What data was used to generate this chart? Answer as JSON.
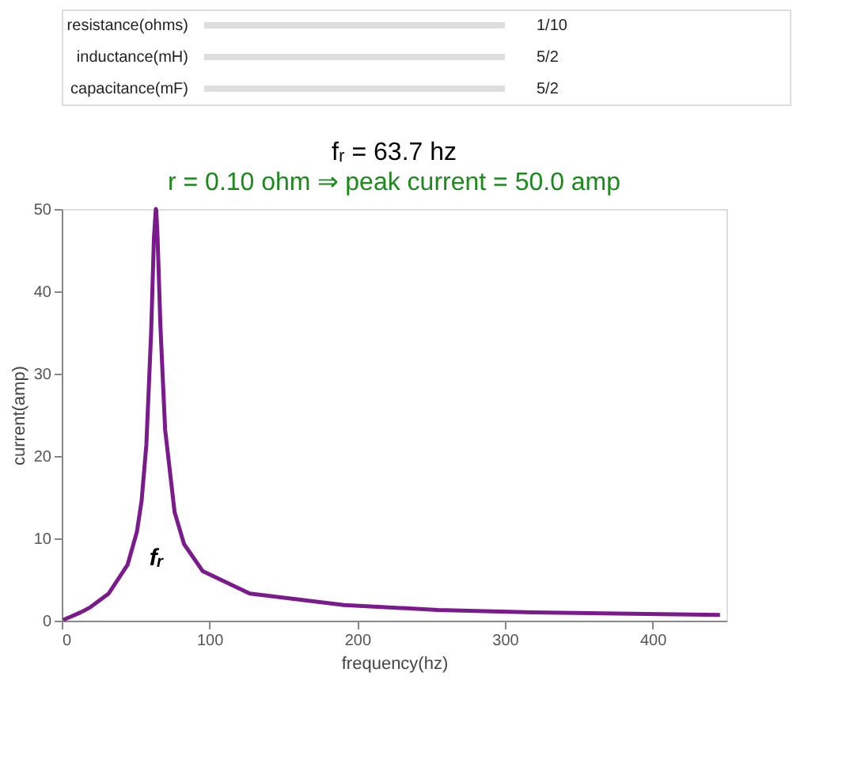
{
  "chart_data": {
    "type": "line",
    "title": "fᵣ = 63.7 hz",
    "subtitle": "r = 0.10 ohm ⇒ peak current = 50.0 amp",
    "xlabel": "frequency(hz)",
    "ylabel": "current(amp)",
    "x": [
      1.0,
      6.4,
      12.7,
      19.1,
      31.8,
      44.6,
      50.9,
      54.1,
      57.3,
      60.5,
      62.4,
      63.7,
      64.0,
      64.9,
      66.8,
      70.0,
      76.4,
      82.8,
      95.5,
      127.3,
      191.0,
      254.6,
      318.3,
      445.6
    ],
    "series": [
      {
        "color": "#7b1a8c",
        "values": [
          0.1,
          0.5,
          1.0,
          1.6,
          3.3,
          6.8,
          10.8,
          14.6,
          21.4,
          34.9,
          46.4,
          50.0,
          49.8,
          46.5,
          35.8,
          23.2,
          13.2,
          9.3,
          6.0,
          3.3,
          1.9,
          1.3,
          1.0,
          0.7
        ]
      }
    ],
    "xlim": [
      0,
      450
    ],
    "xticks": [
      0,
      100,
      200,
      300,
      400
    ],
    "ylim": [
      0,
      50
    ],
    "yticks": [
      0,
      10,
      20,
      30,
      40,
      50
    ],
    "grid": false,
    "line_style": "solid",
    "marker": "none",
    "annotations": [
      "resistance(ohms)",
      "1/10",
      "inductance(mH)",
      "5/2",
      "capacitance(mF)",
      "5/2",
      "fᵣ"
    ]
  }
}
